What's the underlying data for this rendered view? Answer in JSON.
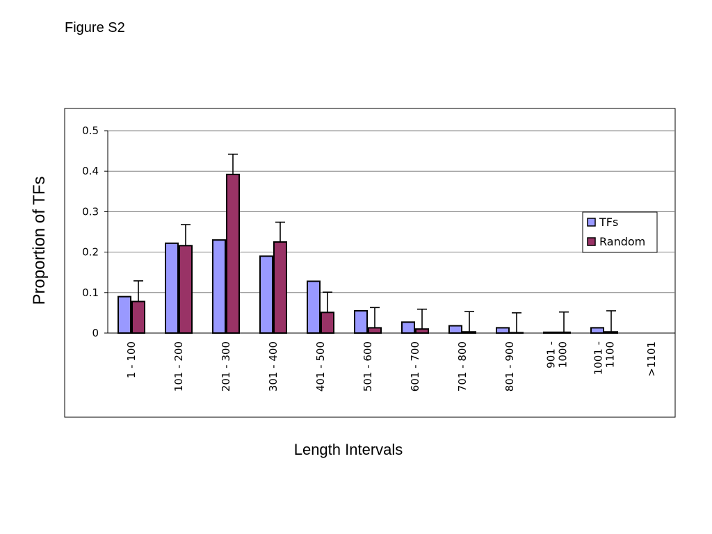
{
  "figure_label": "Figure S2",
  "colors": {
    "tfs": "#9999ff",
    "random": "#993366",
    "grid": "#808080"
  },
  "chart_data": {
    "type": "bar",
    "title": "",
    "xlabel": "Length Intervals",
    "ylabel": "Proportion of TFs",
    "ylim": [
      0,
      0.5
    ],
    "yticks": [
      "0",
      "0.1",
      "0.2",
      "0.3",
      "0.4",
      "0.5"
    ],
    "grid": true,
    "legend_position": "right",
    "categories": [
      [
        "1 - 100"
      ],
      [
        "101 - 200"
      ],
      [
        "201 - 300"
      ],
      [
        "301 - 400"
      ],
      [
        "401 - 500"
      ],
      [
        "501 - 600"
      ],
      [
        "601 - 700"
      ],
      [
        "701 - 800"
      ],
      [
        "801 - 900"
      ],
      [
        "901 -",
        "1000"
      ],
      [
        "1001 -",
        "1100"
      ],
      [
        ">1101"
      ]
    ],
    "series": [
      {
        "name": "TFs",
        "color": "#9999ff",
        "values": [
          0.09,
          0.222,
          0.23,
          0.19,
          0.128,
          0.055,
          0.027,
          0.018,
          0.013,
          0.002,
          0.013,
          0
        ]
      },
      {
        "name": "Random",
        "color": "#993366",
        "values": [
          0.078,
          0.216,
          0.392,
          0.225,
          0.051,
          0.013,
          0.01,
          0.003,
          0.001,
          0.002,
          0.003,
          0
        ],
        "error": [
          0.051,
          0.052,
          0.05,
          0.049,
          0.05,
          0.05,
          0.049,
          0.05,
          0.049,
          0.05,
          0.052,
          0
        ]
      }
    ]
  }
}
